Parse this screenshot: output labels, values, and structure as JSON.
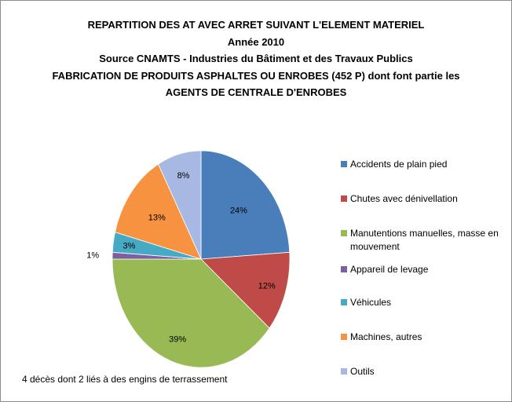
{
  "chart_data": {
    "type": "pie",
    "title_lines": [
      "REPARTITION DES AT AVEC ARRET SUIVANT L'ELEMENT MATERIEL",
      "Année 2010",
      "Source CNAMTS - Industries du Bâtiment et des Travaux Publics",
      "FABRICATION DE PRODUITS ASPHALTES OU ENROBES (452 P) dont font partie les",
      "AGENTS  DE CENTRALE D'ENROBES"
    ],
    "categories": [
      "Accidents de plain pied",
      "Chutes avec dénivellation",
      "Manutentions manuelles, masse en mouvement",
      "Appareil de levage",
      "Véhicules",
      "Machines, autres",
      "Outils"
    ],
    "values": [
      24,
      12,
      39,
      1,
      3,
      13,
      8
    ],
    "data_labels": [
      "24%",
      "12%",
      "39%",
      "1%",
      "3%",
      "13%",
      "8%"
    ],
    "colors": [
      "#4a7ebb",
      "#be4b48",
      "#98b954",
      "#7d60a0",
      "#46aac5",
      "#f69240",
      "#a7b9e3"
    ],
    "legend_position": "right",
    "footnote": "4 décès dont 2 liés à des engins de terrassement"
  }
}
